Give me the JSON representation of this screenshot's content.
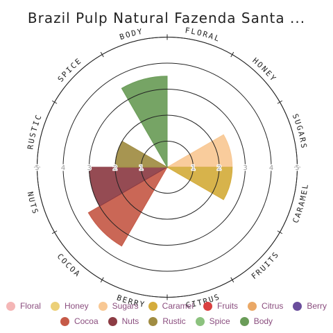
{
  "chart_data": {
    "type": "radial-bar",
    "title": "Brazil Pulp Natural Fazenda Santa ...",
    "categories": [
      "Floral",
      "Honey",
      "Sugars",
      "Caramel",
      "Fruits",
      "Citrus",
      "Berry",
      "Cocoa",
      "Nuts",
      "Rustic",
      "Spice",
      "Body"
    ],
    "values": [
      0,
      0,
      2.5,
      2.5,
      0,
      0,
      0,
      3.5,
      3.0,
      2.0,
      0,
      3.5
    ],
    "colors": [
      "#f4b6b6",
      "#ecd078",
      "#f8c894",
      "#d4ac3c",
      "#d94040",
      "#eaa866",
      "#6a4e9c",
      "#c65a48",
      "#8c3c44",
      "#a08c42",
      "#8cc27e",
      "#6a9c58"
    ],
    "rlim": [
      0,
      5
    ],
    "rings": [
      1,
      2,
      3,
      4,
      5
    ],
    "ring_labels": [
      "1",
      "2",
      "3",
      "4",
      "5"
    ],
    "legend_position": "bottom"
  }
}
